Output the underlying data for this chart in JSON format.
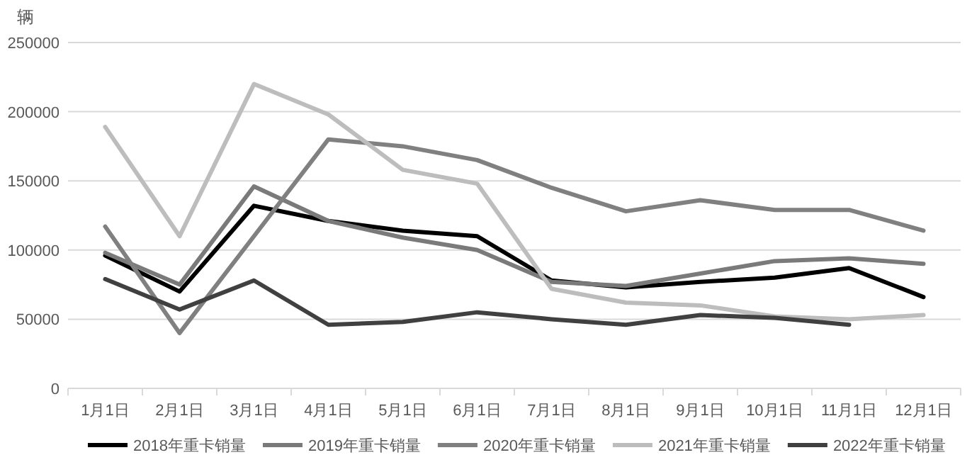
{
  "chart_data": {
    "type": "line",
    "ylabel": "辆",
    "categories": [
      "1月1日",
      "2月1日",
      "3月1日",
      "4月1日",
      "5月1日",
      "6月1日",
      "7月1日",
      "8月1日",
      "9月1日",
      "10月1日",
      "11月1日",
      "12月1日"
    ],
    "series": [
      {
        "name": "2018年重卡销量",
        "color": "#000000",
        "values": [
          96000,
          70000,
          132000,
          121000,
          114000,
          110000,
          78000,
          73000,
          77000,
          80000,
          87000,
          66000
        ]
      },
      {
        "name": "2019年重卡销量",
        "color": "#7a7a7a",
        "values": [
          98000,
          75000,
          146000,
          121000,
          109000,
          100000,
          77000,
          74000,
          83000,
          92000,
          94000,
          90000
        ]
      },
      {
        "name": "2020年重卡销量",
        "color": "#808080",
        "values": [
          117000,
          40000,
          110000,
          180000,
          175000,
          165000,
          145000,
          128000,
          136000,
          129000,
          129000,
          114000
        ]
      },
      {
        "name": "2021年重卡销量",
        "color": "#bdbdbd",
        "values": [
          189000,
          110000,
          220000,
          198000,
          158000,
          148000,
          72000,
          62000,
          60000,
          52000,
          50000,
          53000
        ]
      },
      {
        "name": "2022年重卡销量",
        "color": "#404040",
        "values": [
          79000,
          57000,
          78000,
          46000,
          48000,
          55000,
          50000,
          46000,
          53000,
          51000,
          46000,
          null
        ]
      }
    ],
    "ylim": [
      0,
      250000
    ],
    "yticks": [
      0,
      50000,
      100000,
      150000,
      200000,
      250000
    ],
    "grid": "y",
    "legend": "bottom"
  }
}
